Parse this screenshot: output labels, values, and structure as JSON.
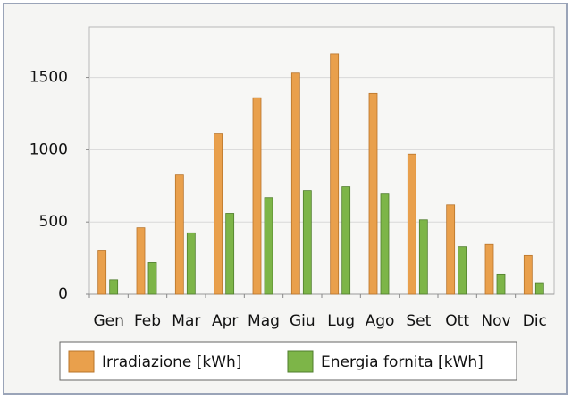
{
  "chart_data": {
    "type": "bar",
    "categories": [
      "Gen",
      "Feb",
      "Mar",
      "Apr",
      "Mag",
      "Giu",
      "Lug",
      "Ago",
      "Set",
      "Ott",
      "Nov",
      "Dic"
    ],
    "series": [
      {
        "name": "Irradiazione [kWh]",
        "color": "#e9a04c",
        "values": [
          300,
          460,
          825,
          1110,
          1360,
          1530,
          1665,
          1390,
          970,
          620,
          345,
          270
        ]
      },
      {
        "name": "Energia fornita [kWh]",
        "color": "#7db548",
        "values": [
          100,
          220,
          425,
          560,
          670,
          720,
          745,
          695,
          515,
          330,
          140,
          80
        ]
      }
    ],
    "ylim": [
      0,
      1850
    ],
    "yticks": [
      0,
      500,
      1000,
      1500
    ],
    "grid": true
  }
}
